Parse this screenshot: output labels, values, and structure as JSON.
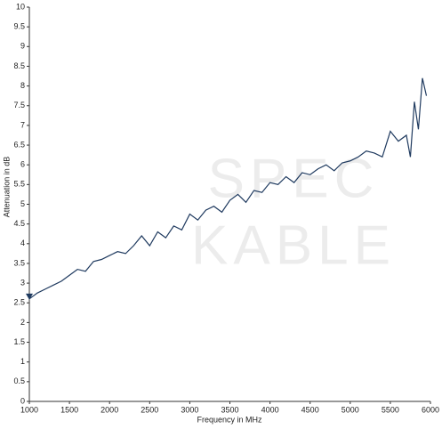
{
  "chart_data": {
    "type": "line",
    "x_label": "Frequency in MHz",
    "y_label": "Attenuation in dB",
    "watermark": [
      "SPEC",
      "KABLE"
    ],
    "x": [
      1000,
      1100,
      1200,
      1300,
      1400,
      1500,
      1600,
      1700,
      1800,
      1900,
      2000,
      2100,
      2200,
      2300,
      2400,
      2500,
      2600,
      2700,
      2800,
      2900,
      3000,
      3100,
      3200,
      3300,
      3400,
      3500,
      3600,
      3700,
      3800,
      3900,
      4000,
      4100,
      4200,
      4300,
      4400,
      4500,
      4600,
      4700,
      4800,
      4900,
      5000,
      5100,
      5200,
      5300,
      5400,
      5500,
      5600,
      5700,
      5750,
      5800,
      5850,
      5900,
      5950
    ],
    "series": [
      {
        "color": "#1f3a5f",
        "values": [
          2.6,
          2.75,
          2.85,
          2.95,
          3.05,
          3.2,
          3.35,
          3.3,
          3.55,
          3.6,
          3.7,
          3.8,
          3.75,
          3.95,
          4.2,
          3.95,
          4.3,
          4.15,
          4.45,
          4.35,
          4.75,
          4.6,
          4.85,
          4.95,
          4.8,
          5.1,
          5.25,
          5.05,
          5.35,
          5.3,
          5.55,
          5.5,
          5.7,
          5.55,
          5.8,
          5.75,
          5.9,
          6.0,
          5.85,
          6.05,
          6.1,
          6.2,
          6.35,
          6.3,
          6.2,
          6.85,
          6.6,
          6.75,
          6.2,
          7.6,
          6.9,
          8.2,
          7.75
        ]
      }
    ],
    "xlim": [
      1000,
      6000
    ],
    "xticks": [
      1000,
      1500,
      2000,
      2500,
      3000,
      3500,
      4000,
      4500,
      5000,
      5500,
      6000
    ],
    "ylim": [
      0,
      10
    ],
    "yticks": [
      0,
      0.5,
      1,
      1.5,
      2,
      2.5,
      3,
      3.5,
      4,
      4.5,
      5,
      5.5,
      6,
      6.5,
      7,
      7.5,
      8,
      8.5,
      9,
      9.5,
      10
    ],
    "grid": false
  }
}
